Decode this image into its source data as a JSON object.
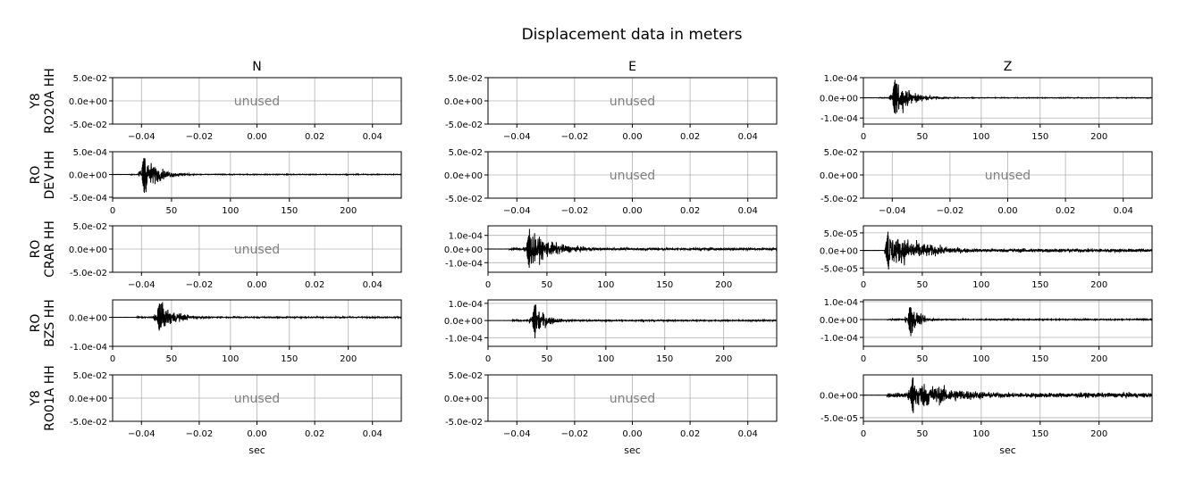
{
  "figure": {
    "title": "Displacement data in meters"
  },
  "chart_data": {
    "type": "line",
    "title": "Displacement data in meters",
    "columns": [
      "N",
      "E",
      "Z"
    ],
    "row_labels": [
      {
        "net": "Y8",
        "sta": "RO20A HH"
      },
      {
        "net": "RO",
        "sta": "DEV HH"
      },
      {
        "net": "RO",
        "sta": "CRAR HH"
      },
      {
        "net": "RO",
        "sta": "BZS HH"
      },
      {
        "net": "Y8",
        "sta": "RO01A HH"
      }
    ],
    "xlabel": "sec",
    "unused_label": "unused",
    "unused_axis": {
      "xlim": [
        -0.05,
        0.05
      ],
      "xticks": [
        -0.04,
        -0.02,
        0.0,
        0.02,
        0.04
      ],
      "xtick_labels": [
        "−0.04",
        "−0.02",
        "0.00",
        "0.02",
        "0.04"
      ],
      "ylim": [
        -0.05,
        0.05
      ],
      "yticks": [
        0.05,
        0.0,
        -0.05
      ],
      "ytick_labels": [
        "5.0e-02",
        "0.0e+00",
        "-5.0e-02"
      ]
    },
    "time_xlim": [
      0,
      245
    ],
    "time_xticks": [
      0,
      50,
      100,
      150,
      200
    ],
    "panels": [
      {
        "row": 0,
        "col": 0,
        "used": false
      },
      {
        "row": 0,
        "col": 1,
        "used": false
      },
      {
        "row": 0,
        "col": 2,
        "used": true,
        "ylim": [
          -0.00013,
          0.0001
        ],
        "yticks": [
          0.0001,
          0.0,
          -0.0001
        ],
        "ytick_labels": [
          "1.0e-04",
          "0.0e+00",
          "-1.0e-04"
        ],
        "signal": {
          "start": 13,
          "onset": 25,
          "peak": 0.0001,
          "decay": 14,
          "noise": 0.02,
          "secondary": null
        }
      },
      {
        "row": 1,
        "col": 0,
        "used": true,
        "ylim": [
          -0.00052,
          0.0005
        ],
        "yticks": [
          0.0005,
          0.0,
          -0.0005
        ],
        "ytick_labels": [
          "5.0e-04",
          "0.0e+00",
          "-5.0e-04"
        ],
        "signal": {
          "start": 14,
          "onset": 25,
          "peak": 0.0005,
          "decay": 12,
          "noise": 0.02,
          "secondary": null
        }
      },
      {
        "row": 1,
        "col": 1,
        "used": false
      },
      {
        "row": 1,
        "col": 2,
        "used": false
      },
      {
        "row": 2,
        "col": 0,
        "used": false
      },
      {
        "row": 2,
        "col": 1,
        "used": true,
        "ylim": [
          -0.00017,
          0.00017
        ],
        "yticks": [
          0.0001,
          0.0,
          -0.0001
        ],
        "ytick_labels": [
          "1.0e-04",
          "0.0e+00",
          "-1.0e-04"
        ],
        "signal": {
          "start": 18,
          "onset": 33,
          "peak": 0.00015,
          "decay": 22,
          "noise": 0.06,
          "secondary": null
        }
      },
      {
        "row": 2,
        "col": 2,
        "used": true,
        "ylim": [
          -6.2e-05,
          7e-05
        ],
        "yticks": [
          5e-05,
          0.0,
          -5e-05
        ],
        "ytick_labels": [
          "5.0e-05",
          "0.0e+00",
          "-5.0e-05"
        ],
        "signal": {
          "start": 18,
          "onset": 19,
          "peak": 6e-05,
          "decay": 28,
          "noise": 0.1,
          "secondary": {
            "at": 33,
            "amp": 0.8
          }
        }
      },
      {
        "row": 3,
        "col": 0,
        "used": true,
        "ylim": [
          -0.0001,
          6e-05
        ],
        "yticks": [
          0.0,
          -0.0001
        ],
        "ytick_labels": [
          "0.0e+00",
          "-1.0e-04"
        ],
        "signal": {
          "start": 20,
          "onset": 38,
          "peak": 6e-05,
          "decay": 14,
          "noise": 0.04,
          "secondary": null
        }
      },
      {
        "row": 3,
        "col": 1,
        "used": true,
        "ylim": [
          -0.00015,
          0.00012
        ],
        "yticks": [
          0.0001,
          0.0,
          -0.0001
        ],
        "ytick_labels": [
          "1.0e-04",
          "0.0e+00",
          "-1.0e-04"
        ],
        "signal": {
          "start": 20,
          "onset": 38,
          "peak": 0.00011,
          "decay": 10,
          "noise": 0.04,
          "secondary": null
        }
      },
      {
        "row": 3,
        "col": 2,
        "used": true,
        "ylim": [
          -0.00015,
          0.00011
        ],
        "yticks": [
          0.0001,
          0.0,
          -0.0001
        ],
        "ytick_labels": [
          "1.0e-04",
          "0.0e+00",
          "-1.0e-04"
        ],
        "signal": {
          "start": 20,
          "onset": 38,
          "peak": 0.0001,
          "decay": 8,
          "noise": 0.04,
          "secondary": null
        }
      },
      {
        "row": 4,
        "col": 0,
        "used": false
      },
      {
        "row": 4,
        "col": 1,
        "used": false
      },
      {
        "row": 4,
        "col": 2,
        "used": true,
        "ylim": [
          -5.8e-05,
          4.5e-05
        ],
        "yticks": [
          0.0,
          -5e-05
        ],
        "ytick_labels": [
          "0.0e+00",
          "-5.0e-05"
        ],
        "signal": {
          "start": 20,
          "onset": 40,
          "peak": 4.2e-05,
          "decay": 40,
          "noise": 0.15,
          "secondary": null
        }
      }
    ]
  }
}
